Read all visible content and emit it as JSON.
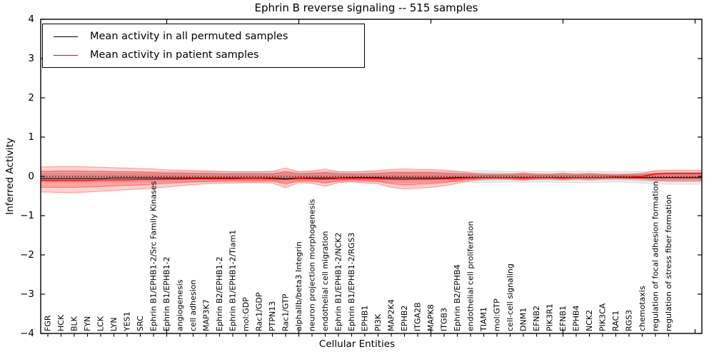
{
  "figure": {
    "title": "Ephrin B reverse signaling -- 515 samples",
    "xlabel": "Cellular Entities",
    "ylabel": "Inferred Activity"
  },
  "legend": {
    "items": [
      {
        "label": "Mean activity in all permuted samples",
        "color": "#000000"
      },
      {
        "label": "Mean activity in patient samples",
        "color": "#ff0000"
      }
    ]
  },
  "chart_data": {
    "type": "line",
    "title": "Ephrin B reverse signaling -- 515 samples",
    "xlabel": "Cellular Entities",
    "ylabel": "Inferred Activity",
    "ylim": [
      -4,
      4
    ],
    "yticks": [
      4,
      3,
      2,
      1,
      0,
      -1,
      -2,
      -3,
      -4
    ],
    "yticklabels": [
      "4",
      "3",
      "2",
      "1",
      "0",
      "−1",
      "−2",
      "−3",
      "−4"
    ],
    "grid": false,
    "legend_position": "upper left",
    "categories": [
      "FGR",
      "HCK",
      "BLK",
      "FYN",
      "LCK",
      "LYN",
      "YES1",
      "SRC",
      "Ephrin B1/EPHB1-2/Src Family Kinases",
      "Ephrin B1/EPHB1-2",
      "angiogenesis",
      "cell adhesion",
      "MAP3K7",
      "Ephrin B2/EPHB1-2",
      "Ephrin B1/EPHB1-2/Tiam1",
      "mol:GDP",
      "Rac1/GDP",
      "PTPN13",
      "Rac1/GTP",
      "alphaIIb/beta3 Integrin",
      "neuron projection morphogenesis",
      "endothelial cell migration",
      "Ephrin B1/EPHB1-2/NCK2",
      "Ephrin B1/EPHB1-2/RGS3",
      "EPHB1",
      "PI3K",
      "MAP2K4",
      "EPHB2",
      "ITGA2B",
      "MAPK8",
      "ITGB3",
      "Ephrin B2/EPHB4",
      "endothelial cell proliferation",
      "TIAM1",
      "mol:GTP",
      "cell-cell signaling",
      "DNM1",
      "EFNB2",
      "PIK3R1",
      "EFNB1",
      "EPHB4",
      "NCK2",
      "PIK3CA",
      "RAC1",
      "RGS3",
      "chemotaxis",
      "regulation of focal adhesion formation",
      "regulation of stress fiber formation"
    ],
    "reference_line": {
      "y": 0,
      "color": "#000000",
      "style": "dotted"
    },
    "series": [
      {
        "name": "Mean activity in all permuted samples",
        "color": "#000000",
        "width": 1.1,
        "values": [
          -0.05,
          -0.05,
          -0.05,
          -0.05,
          -0.05,
          -0.04,
          -0.04,
          -0.04,
          -0.04,
          -0.04,
          -0.04,
          -0.04,
          -0.04,
          -0.04,
          -0.04,
          -0.04,
          -0.04,
          -0.04,
          -0.05,
          -0.04,
          -0.04,
          -0.04,
          -0.04,
          -0.03,
          -0.03,
          -0.03,
          -0.04,
          -0.04,
          -0.04,
          -0.04,
          -0.04,
          -0.03,
          -0.03,
          -0.03,
          -0.03,
          -0.03,
          -0.03,
          -0.03,
          -0.03,
          -0.03,
          -0.03,
          -0.03,
          -0.03,
          -0.03,
          -0.03,
          -0.03,
          -0.03,
          -0.03
        ]
      },
      {
        "name": "Mean activity in patient samples",
        "color": "#ff0000",
        "width": 1.4,
        "values": [
          -0.1,
          -0.1,
          -0.1,
          -0.1,
          -0.09,
          -0.09,
          -0.09,
          -0.08,
          -0.08,
          -0.07,
          -0.07,
          -0.06,
          -0.06,
          -0.06,
          -0.06,
          -0.05,
          -0.05,
          -0.06,
          -0.08,
          -0.05,
          -0.06,
          -0.07,
          -0.05,
          -0.05,
          -0.05,
          -0.06,
          -0.07,
          -0.08,
          -0.07,
          -0.07,
          -0.06,
          -0.05,
          -0.04,
          -0.03,
          -0.03,
          -0.03,
          -0.04,
          -0.03,
          -0.03,
          -0.04,
          -0.03,
          -0.03,
          -0.03,
          -0.02,
          -0.02,
          0.0,
          0.06,
          0.07
        ]
      }
    ],
    "bands": [
      {
        "name": "permuted-range-outer",
        "fill": "rgba(0,0,0,0.06)",
        "stroke": "rgba(0,0,0,0.13)",
        "upper": [
          0.12,
          0.12,
          0.12,
          0.12,
          0.12,
          0.12,
          0.12,
          0.12,
          0.12,
          0.12,
          0.12,
          0.12,
          0.12,
          0.12,
          0.12,
          0.12,
          0.12,
          0.12,
          0.13,
          0.12,
          0.12,
          0.13,
          0.12,
          0.12,
          0.12,
          0.12,
          0.13,
          0.13,
          0.13,
          0.13,
          0.12,
          0.12,
          0.13,
          0.14,
          0.13,
          0.12,
          0.13,
          0.12,
          0.12,
          0.13,
          0.12,
          0.13,
          0.12,
          0.12,
          0.12,
          0.12,
          0.12,
          0.11
        ],
        "lower": [
          -0.14,
          -0.14,
          -0.14,
          -0.14,
          -0.14,
          -0.14,
          -0.14,
          -0.14,
          -0.14,
          -0.14,
          -0.14,
          -0.14,
          -0.14,
          -0.14,
          -0.14,
          -0.14,
          -0.14,
          -0.14,
          -0.15,
          -0.14,
          -0.14,
          -0.15,
          -0.14,
          -0.14,
          -0.14,
          -0.14,
          -0.15,
          -0.15,
          -0.15,
          -0.15,
          -0.14,
          -0.14,
          -0.15,
          -0.16,
          -0.15,
          -0.14,
          -0.15,
          -0.14,
          -0.14,
          -0.16,
          -0.15,
          -0.16,
          -0.15,
          -0.14,
          -0.15,
          -0.17,
          -0.19,
          -0.2
        ]
      },
      {
        "name": "permuted-range-inner",
        "fill": "rgba(0,0,0,0.09)",
        "stroke": "rgba(0,0,0,0.15)",
        "upper": [
          0.07,
          0.07,
          0.07,
          0.07,
          0.07,
          0.07,
          0.07,
          0.07,
          0.07,
          0.07,
          0.07,
          0.07,
          0.07,
          0.07,
          0.07,
          0.07,
          0.07,
          0.07,
          0.08,
          0.07,
          0.07,
          0.08,
          0.07,
          0.07,
          0.07,
          0.07,
          0.08,
          0.08,
          0.08,
          0.08,
          0.07,
          0.07,
          0.08,
          0.08,
          0.08,
          0.07,
          0.08,
          0.07,
          0.07,
          0.08,
          0.07,
          0.08,
          0.07,
          0.07,
          0.07,
          0.07,
          0.07,
          0.07
        ],
        "lower": [
          -0.09,
          -0.09,
          -0.09,
          -0.09,
          -0.09,
          -0.09,
          -0.09,
          -0.09,
          -0.09,
          -0.09,
          -0.09,
          -0.09,
          -0.09,
          -0.09,
          -0.09,
          -0.09,
          -0.09,
          -0.09,
          -0.09,
          -0.09,
          -0.09,
          -0.09,
          -0.09,
          -0.09,
          -0.09,
          -0.09,
          -0.09,
          -0.09,
          -0.09,
          -0.09,
          -0.09,
          -0.09,
          -0.09,
          -0.1,
          -0.09,
          -0.09,
          -0.09,
          -0.09,
          -0.09,
          -0.1,
          -0.09,
          -0.1,
          -0.09,
          -0.09,
          -0.09,
          -0.11,
          -0.12,
          -0.13
        ]
      },
      {
        "name": "patient-range-outer",
        "fill": "rgba(255,0,0,0.18)",
        "stroke": "rgba(255,0,0,0.35)",
        "upper": [
          0.24,
          0.25,
          0.25,
          0.24,
          0.23,
          0.22,
          0.21,
          0.2,
          0.19,
          0.17,
          0.16,
          0.15,
          0.14,
          0.13,
          0.12,
          0.12,
          0.12,
          0.13,
          0.21,
          0.12,
          0.14,
          0.19,
          0.12,
          0.11,
          0.13,
          0.15,
          0.18,
          0.19,
          0.18,
          0.18,
          0.16,
          0.13,
          0.09,
          0.06,
          0.05,
          0.06,
          0.09,
          0.06,
          0.05,
          0.08,
          0.05,
          0.07,
          0.05,
          0.04,
          0.05,
          0.08,
          0.15,
          0.16
        ],
        "lower": [
          -0.4,
          -0.41,
          -0.41,
          -0.4,
          -0.38,
          -0.36,
          -0.34,
          -0.32,
          -0.3,
          -0.27,
          -0.24,
          -0.21,
          -0.19,
          -0.18,
          -0.17,
          -0.16,
          -0.16,
          -0.17,
          -0.29,
          -0.16,
          -0.18,
          -0.25,
          -0.16,
          -0.14,
          -0.17,
          -0.19,
          -0.28,
          -0.32,
          -0.3,
          -0.28,
          -0.24,
          -0.18,
          -0.11,
          -0.07,
          -0.06,
          -0.07,
          -0.1,
          -0.07,
          -0.06,
          -0.09,
          -0.06,
          -0.08,
          -0.06,
          -0.05,
          -0.06,
          -0.07,
          -0.1,
          -0.11
        ]
      },
      {
        "name": "patient-range-inner",
        "fill": "rgba(255,0,0,0.22)",
        "stroke": "rgba(255,0,0,0.40)",
        "upper": [
          0.13,
          0.14,
          0.14,
          0.13,
          0.13,
          0.12,
          0.12,
          0.11,
          0.1,
          0.09,
          0.09,
          0.08,
          0.08,
          0.07,
          0.07,
          0.07,
          0.07,
          0.07,
          0.12,
          0.07,
          0.08,
          0.1,
          0.07,
          0.06,
          0.07,
          0.08,
          0.1,
          0.1,
          0.1,
          0.1,
          0.09,
          0.07,
          0.05,
          0.03,
          0.03,
          0.03,
          0.05,
          0.03,
          0.03,
          0.04,
          0.03,
          0.04,
          0.03,
          0.02,
          0.03,
          0.04,
          0.08,
          0.09
        ],
        "lower": [
          -0.28,
          -0.28,
          -0.28,
          -0.27,
          -0.26,
          -0.24,
          -0.23,
          -0.22,
          -0.2,
          -0.18,
          -0.16,
          -0.14,
          -0.13,
          -0.12,
          -0.11,
          -0.11,
          -0.11,
          -0.11,
          -0.2,
          -0.11,
          -0.12,
          -0.17,
          -0.11,
          -0.09,
          -0.11,
          -0.13,
          -0.19,
          -0.22,
          -0.2,
          -0.19,
          -0.16,
          -0.12,
          -0.07,
          -0.05,
          -0.04,
          -0.05,
          -0.07,
          -0.05,
          -0.04,
          -0.06,
          -0.04,
          -0.05,
          -0.04,
          -0.03,
          -0.04,
          -0.05,
          -0.07,
          -0.07
        ]
      }
    ]
  }
}
